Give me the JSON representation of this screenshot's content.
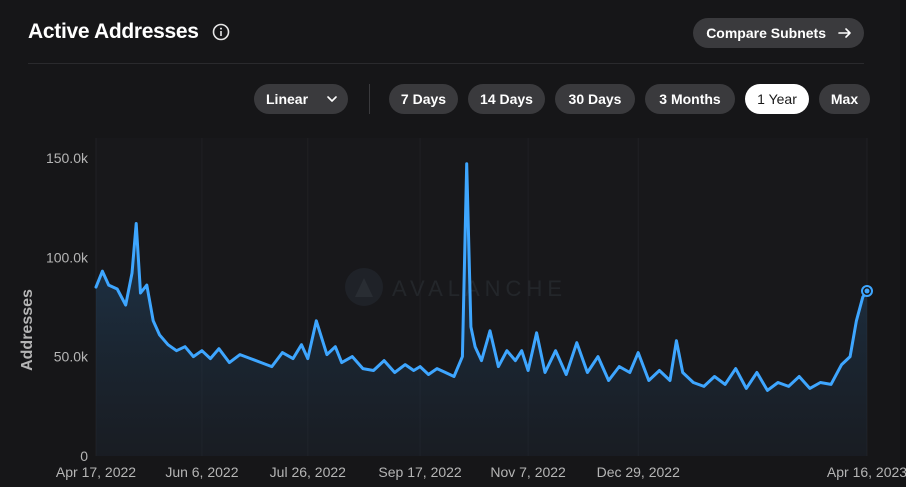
{
  "header": {
    "title": "Active Addresses",
    "compare_label": "Compare Subnets"
  },
  "controls": {
    "scale": "Linear",
    "ranges": [
      "7 Days",
      "14 Days",
      "30 Days",
      "3 Months",
      "1 Year",
      "Max"
    ],
    "active_range": "1 Year"
  },
  "watermark": "AVALANCHE",
  "colors": {
    "line": "#3ea6ff",
    "background": "#161618",
    "button": "#3a3a3d"
  },
  "chart_data": {
    "type": "area",
    "ylabel": "Addresses",
    "xlabel": "",
    "ylim": [
      0,
      160000
    ],
    "yticks": [
      0,
      50000,
      100000,
      150000
    ],
    "ytick_labels": [
      "0",
      "50.0k",
      "100.0k",
      "150.0k"
    ],
    "xticks": [
      "2022-04-17",
      "2022-06-06",
      "2022-07-26",
      "2022-09-17",
      "2022-11-07",
      "2022-12-29",
      "2023-04-16"
    ],
    "xtick_labels": [
      "Apr 17, 2022",
      "Jun 6, 2022",
      "Jul 26, 2022",
      "Sep 17, 2022",
      "Nov 7, 2022",
      "Dec 29, 2022",
      "Apr 16, 2023"
    ],
    "x": [
      "2022-04-17",
      "2022-04-20",
      "2022-04-23",
      "2022-04-27",
      "2022-05-01",
      "2022-05-04",
      "2022-05-06",
      "2022-05-08",
      "2022-05-11",
      "2022-05-14",
      "2022-05-17",
      "2022-05-21",
      "2022-05-25",
      "2022-05-29",
      "2022-06-02",
      "2022-06-06",
      "2022-06-10",
      "2022-06-14",
      "2022-06-19",
      "2022-06-24",
      "2022-06-29",
      "2022-07-04",
      "2022-07-09",
      "2022-07-14",
      "2022-07-19",
      "2022-07-23",
      "2022-07-26",
      "2022-07-30",
      "2022-08-04",
      "2022-08-08",
      "2022-08-11",
      "2022-08-16",
      "2022-08-21",
      "2022-08-26",
      "2022-08-31",
      "2022-09-05",
      "2022-09-10",
      "2022-09-14",
      "2022-09-17",
      "2022-09-21",
      "2022-09-25",
      "2022-09-29",
      "2022-10-03",
      "2022-10-07",
      "2022-10-09",
      "2022-10-11",
      "2022-10-13",
      "2022-10-16",
      "2022-10-20",
      "2022-10-24",
      "2022-10-28",
      "2022-11-01",
      "2022-11-04",
      "2022-11-07",
      "2022-11-11",
      "2022-11-15",
      "2022-11-20",
      "2022-11-25",
      "2022-11-30",
      "2022-12-05",
      "2022-12-10",
      "2022-12-15",
      "2022-12-20",
      "2022-12-25",
      "2022-12-29",
      "2023-01-03",
      "2023-01-08",
      "2023-01-13",
      "2023-01-16",
      "2023-01-19",
      "2023-01-24",
      "2023-01-29",
      "2023-02-03",
      "2023-02-08",
      "2023-02-13",
      "2023-02-18",
      "2023-02-23",
      "2023-02-28",
      "2023-03-05",
      "2023-03-10",
      "2023-03-15",
      "2023-03-20",
      "2023-03-25",
      "2023-03-30",
      "2023-04-04",
      "2023-04-08",
      "2023-04-11",
      "2023-04-14",
      "2023-04-16"
    ],
    "series": [
      {
        "values": [
          85000,
          93000,
          86000,
          84000,
          76000,
          92000,
          117000,
          82000,
          86000,
          68000,
          61000,
          56000,
          53000,
          55000,
          50000,
          53000,
          49000,
          54000,
          47000,
          51000,
          49000,
          47000,
          45000,
          52000,
          49000,
          56000,
          49000,
          68000,
          51000,
          55000,
          47000,
          50000,
          44000,
          43000,
          48000,
          42000,
          46000,
          43000,
          45000,
          41000,
          44000,
          42000,
          40000,
          50000,
          147000,
          65000,
          55000,
          48000,
          63000,
          45000,
          53000,
          48000,
          53000,
          43000,
          62000,
          42000,
          53000,
          41000,
          57000,
          42000,
          50000,
          38000,
          45000,
          42000,
          52000,
          38000,
          43000,
          38000,
          58000,
          42000,
          37000,
          35000,
          40000,
          36000,
          44000,
          34000,
          42000,
          33000,
          37000,
          35000,
          40000,
          34000,
          37000,
          36000,
          46000,
          50000,
          68000,
          80000,
          83000
        ]
      }
    ]
  }
}
